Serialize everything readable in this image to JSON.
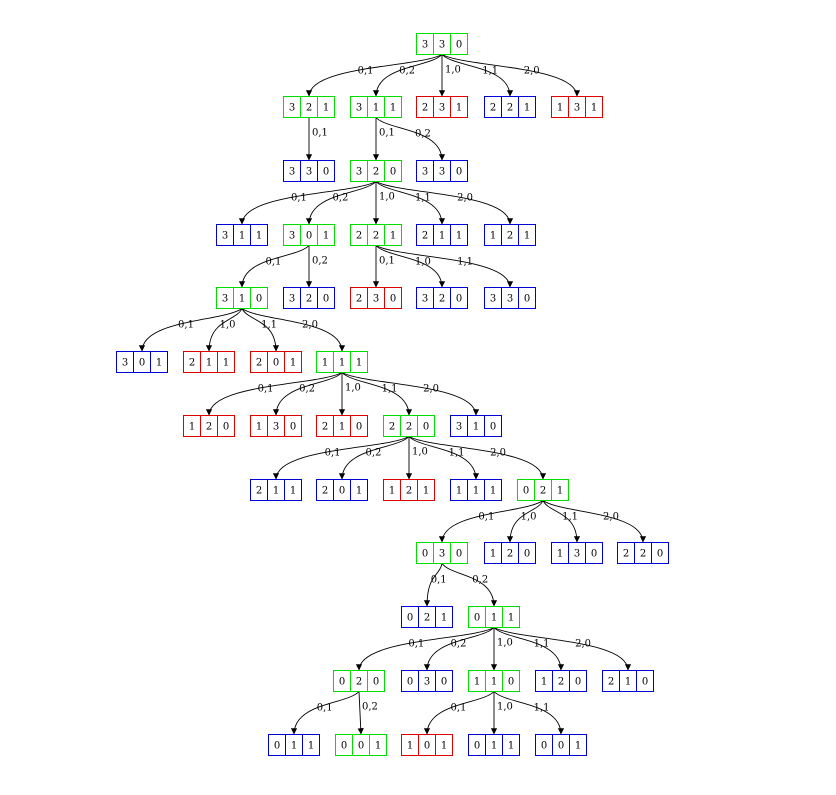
{
  "colors": {
    "green": "#00dd00",
    "red": "#e00000",
    "blue": "#0000dd",
    "edge": "#000000",
    "text": "#000000",
    "background": "#ffffff"
  },
  "nodes": [
    {
      "id": "n1",
      "cells": [
        "3",
        "3",
        "0"
      ],
      "color": "green"
    },
    {
      "id": "n2",
      "cells": [
        "3",
        "2",
        "1"
      ],
      "color": "green"
    },
    {
      "id": "n3",
      "cells": [
        "3",
        "1",
        "1"
      ],
      "color": "green"
    },
    {
      "id": "n4",
      "cells": [
        "2",
        "3",
        "1"
      ],
      "color": "red"
    },
    {
      "id": "n5",
      "cells": [
        "2",
        "2",
        "1"
      ],
      "color": "blue"
    },
    {
      "id": "n6",
      "cells": [
        "1",
        "3",
        "1"
      ],
      "color": "red"
    },
    {
      "id": "n7",
      "cells": [
        "3",
        "3",
        "0"
      ],
      "color": "blue"
    },
    {
      "id": "n8",
      "cells": [
        "3",
        "2",
        "0"
      ],
      "color": "green"
    },
    {
      "id": "n9",
      "cells": [
        "3",
        "3",
        "0"
      ],
      "color": "blue"
    },
    {
      "id": "n10",
      "cells": [
        "3",
        "1",
        "1"
      ],
      "color": "blue"
    },
    {
      "id": "n11",
      "cells": [
        "3",
        "0",
        "1"
      ],
      "color": "green"
    },
    {
      "id": "n12",
      "cells": [
        "2",
        "2",
        "1"
      ],
      "color": "green"
    },
    {
      "id": "n13",
      "cells": [
        "2",
        "1",
        "1"
      ],
      "color": "blue"
    },
    {
      "id": "n14",
      "cells": [
        "1",
        "2",
        "1"
      ],
      "color": "blue"
    },
    {
      "id": "n15",
      "cells": [
        "3",
        "1",
        "0"
      ],
      "color": "green"
    },
    {
      "id": "n16",
      "cells": [
        "3",
        "2",
        "0"
      ],
      "color": "blue"
    },
    {
      "id": "n17",
      "cells": [
        "2",
        "3",
        "0"
      ],
      "color": "red"
    },
    {
      "id": "n18",
      "cells": [
        "3",
        "2",
        "0"
      ],
      "color": "blue"
    },
    {
      "id": "n19",
      "cells": [
        "3",
        "3",
        "0"
      ],
      "color": "blue"
    },
    {
      "id": "n20",
      "cells": [
        "3",
        "0",
        "1"
      ],
      "color": "blue"
    },
    {
      "id": "n21",
      "cells": [
        "2",
        "1",
        "1"
      ],
      "color": "red"
    },
    {
      "id": "n22",
      "cells": [
        "2",
        "0",
        "1"
      ],
      "color": "red"
    },
    {
      "id": "n23",
      "cells": [
        "1",
        "1",
        "1"
      ],
      "color": "green"
    },
    {
      "id": "n24",
      "cells": [
        "1",
        "2",
        "0"
      ],
      "color": "red"
    },
    {
      "id": "n25",
      "cells": [
        "1",
        "3",
        "0"
      ],
      "color": "red"
    },
    {
      "id": "n26",
      "cells": [
        "2",
        "1",
        "0"
      ],
      "color": "red"
    },
    {
      "id": "n27",
      "cells": [
        "2",
        "2",
        "0"
      ],
      "color": "green"
    },
    {
      "id": "n28",
      "cells": [
        "3",
        "1",
        "0"
      ],
      "color": "blue"
    },
    {
      "id": "n29",
      "cells": [
        "2",
        "1",
        "1"
      ],
      "color": "blue"
    },
    {
      "id": "n30",
      "cells": [
        "2",
        "0",
        "1"
      ],
      "color": "blue"
    },
    {
      "id": "n31",
      "cells": [
        "1",
        "2",
        "1"
      ],
      "color": "red"
    },
    {
      "id": "n32",
      "cells": [
        "1",
        "1",
        "1"
      ],
      "color": "blue"
    },
    {
      "id": "n33",
      "cells": [
        "0",
        "2",
        "1"
      ],
      "color": "green"
    },
    {
      "id": "n34",
      "cells": [
        "0",
        "3",
        "0"
      ],
      "color": "green"
    },
    {
      "id": "n35",
      "cells": [
        "1",
        "2",
        "0"
      ],
      "color": "blue"
    },
    {
      "id": "n36",
      "cells": [
        "1",
        "3",
        "0"
      ],
      "color": "blue"
    },
    {
      "id": "n37",
      "cells": [
        "2",
        "2",
        "0"
      ],
      "color": "blue"
    },
    {
      "id": "n38",
      "cells": [
        "0",
        "2",
        "1"
      ],
      "color": "blue"
    },
    {
      "id": "n39",
      "cells": [
        "0",
        "1",
        "1"
      ],
      "color": "green"
    },
    {
      "id": "n40",
      "cells": [
        "0",
        "2",
        "0"
      ],
      "color": "green"
    },
    {
      "id": "n41",
      "cells": [
        "0",
        "3",
        "0"
      ],
      "color": "blue"
    },
    {
      "id": "n42",
      "cells": [
        "1",
        "1",
        "0"
      ],
      "color": "green"
    },
    {
      "id": "n43",
      "cells": [
        "1",
        "2",
        "0"
      ],
      "color": "blue"
    },
    {
      "id": "n44",
      "cells": [
        "2",
        "1",
        "0"
      ],
      "color": "blue"
    },
    {
      "id": "n45",
      "cells": [
        "0",
        "1",
        "1"
      ],
      "color": "blue"
    },
    {
      "id": "n46",
      "cells": [
        "0",
        "0",
        "1"
      ],
      "color": "green"
    },
    {
      "id": "n47",
      "cells": [
        "1",
        "0",
        "1"
      ],
      "color": "red"
    },
    {
      "id": "n48",
      "cells": [
        "0",
        "1",
        "1"
      ],
      "color": "blue"
    },
    {
      "id": "n49",
      "cells": [
        "0",
        "0",
        "1"
      ],
      "color": "blue"
    }
  ],
  "edges": [
    {
      "from": "n1",
      "to": "n2",
      "label": "0,1"
    },
    {
      "from": "n1",
      "to": "n3",
      "label": "0,2"
    },
    {
      "from": "n1",
      "to": "n4",
      "label": "1,0"
    },
    {
      "from": "n1",
      "to": "n5",
      "label": "1,1"
    },
    {
      "from": "n1",
      "to": "n6",
      "label": "2,0"
    },
    {
      "from": "n2",
      "to": "n7",
      "label": "0,1"
    },
    {
      "from": "n3",
      "to": "n8",
      "label": "0,1"
    },
    {
      "from": "n3",
      "to": "n9",
      "label": "0,2"
    },
    {
      "from": "n8",
      "to": "n10",
      "label": "0,1"
    },
    {
      "from": "n8",
      "to": "n11",
      "label": "0,2"
    },
    {
      "from": "n8",
      "to": "n12",
      "label": "1,0"
    },
    {
      "from": "n8",
      "to": "n13",
      "label": "1,1"
    },
    {
      "from": "n8",
      "to": "n14",
      "label": "2,0"
    },
    {
      "from": "n11",
      "to": "n15",
      "label": "0,1"
    },
    {
      "from": "n11",
      "to": "n16",
      "label": "0,2"
    },
    {
      "from": "n12",
      "to": "n17",
      "label": "0,1"
    },
    {
      "from": "n12",
      "to": "n18",
      "label": "1,0"
    },
    {
      "from": "n12",
      "to": "n19",
      "label": "1,1"
    },
    {
      "from": "n15",
      "to": "n20",
      "label": "0,1"
    },
    {
      "from": "n15",
      "to": "n21",
      "label": "1,0"
    },
    {
      "from": "n15",
      "to": "n22",
      "label": "1,1"
    },
    {
      "from": "n15",
      "to": "n23",
      "label": "2,0"
    },
    {
      "from": "n23",
      "to": "n24",
      "label": "0,1"
    },
    {
      "from": "n23",
      "to": "n25",
      "label": "0,2"
    },
    {
      "from": "n23",
      "to": "n26",
      "label": "1,0"
    },
    {
      "from": "n23",
      "to": "n27",
      "label": "1,1"
    },
    {
      "from": "n23",
      "to": "n28",
      "label": "2,0"
    },
    {
      "from": "n27",
      "to": "n29",
      "label": "0,1"
    },
    {
      "from": "n27",
      "to": "n30",
      "label": "0,2"
    },
    {
      "from": "n27",
      "to": "n31",
      "label": "1,0"
    },
    {
      "from": "n27",
      "to": "n32",
      "label": "1,1"
    },
    {
      "from": "n27",
      "to": "n33",
      "label": "2,0"
    },
    {
      "from": "n33",
      "to": "n34",
      "label": "0,1"
    },
    {
      "from": "n33",
      "to": "n35",
      "label": "1,0"
    },
    {
      "from": "n33",
      "to": "n36",
      "label": "1,1"
    },
    {
      "from": "n33",
      "to": "n37",
      "label": "2,0"
    },
    {
      "from": "n34",
      "to": "n38",
      "label": "0,1"
    },
    {
      "from": "n34",
      "to": "n39",
      "label": "0,2"
    },
    {
      "from": "n39",
      "to": "n40",
      "label": "0,1"
    },
    {
      "from": "n39",
      "to": "n41",
      "label": "0,2"
    },
    {
      "from": "n39",
      "to": "n42",
      "label": "1,0"
    },
    {
      "from": "n39",
      "to": "n43",
      "label": "1,1"
    },
    {
      "from": "n39",
      "to": "n44",
      "label": "2,0"
    },
    {
      "from": "n40",
      "to": "n45",
      "label": "0,1"
    },
    {
      "from": "n40",
      "to": "n46",
      "label": "0,2"
    },
    {
      "from": "n42",
      "to": "n47",
      "label": "0,1"
    },
    {
      "from": "n42",
      "to": "n48",
      "label": "1,0"
    },
    {
      "from": "n42",
      "to": "n49",
      "label": "1,1"
    }
  ]
}
